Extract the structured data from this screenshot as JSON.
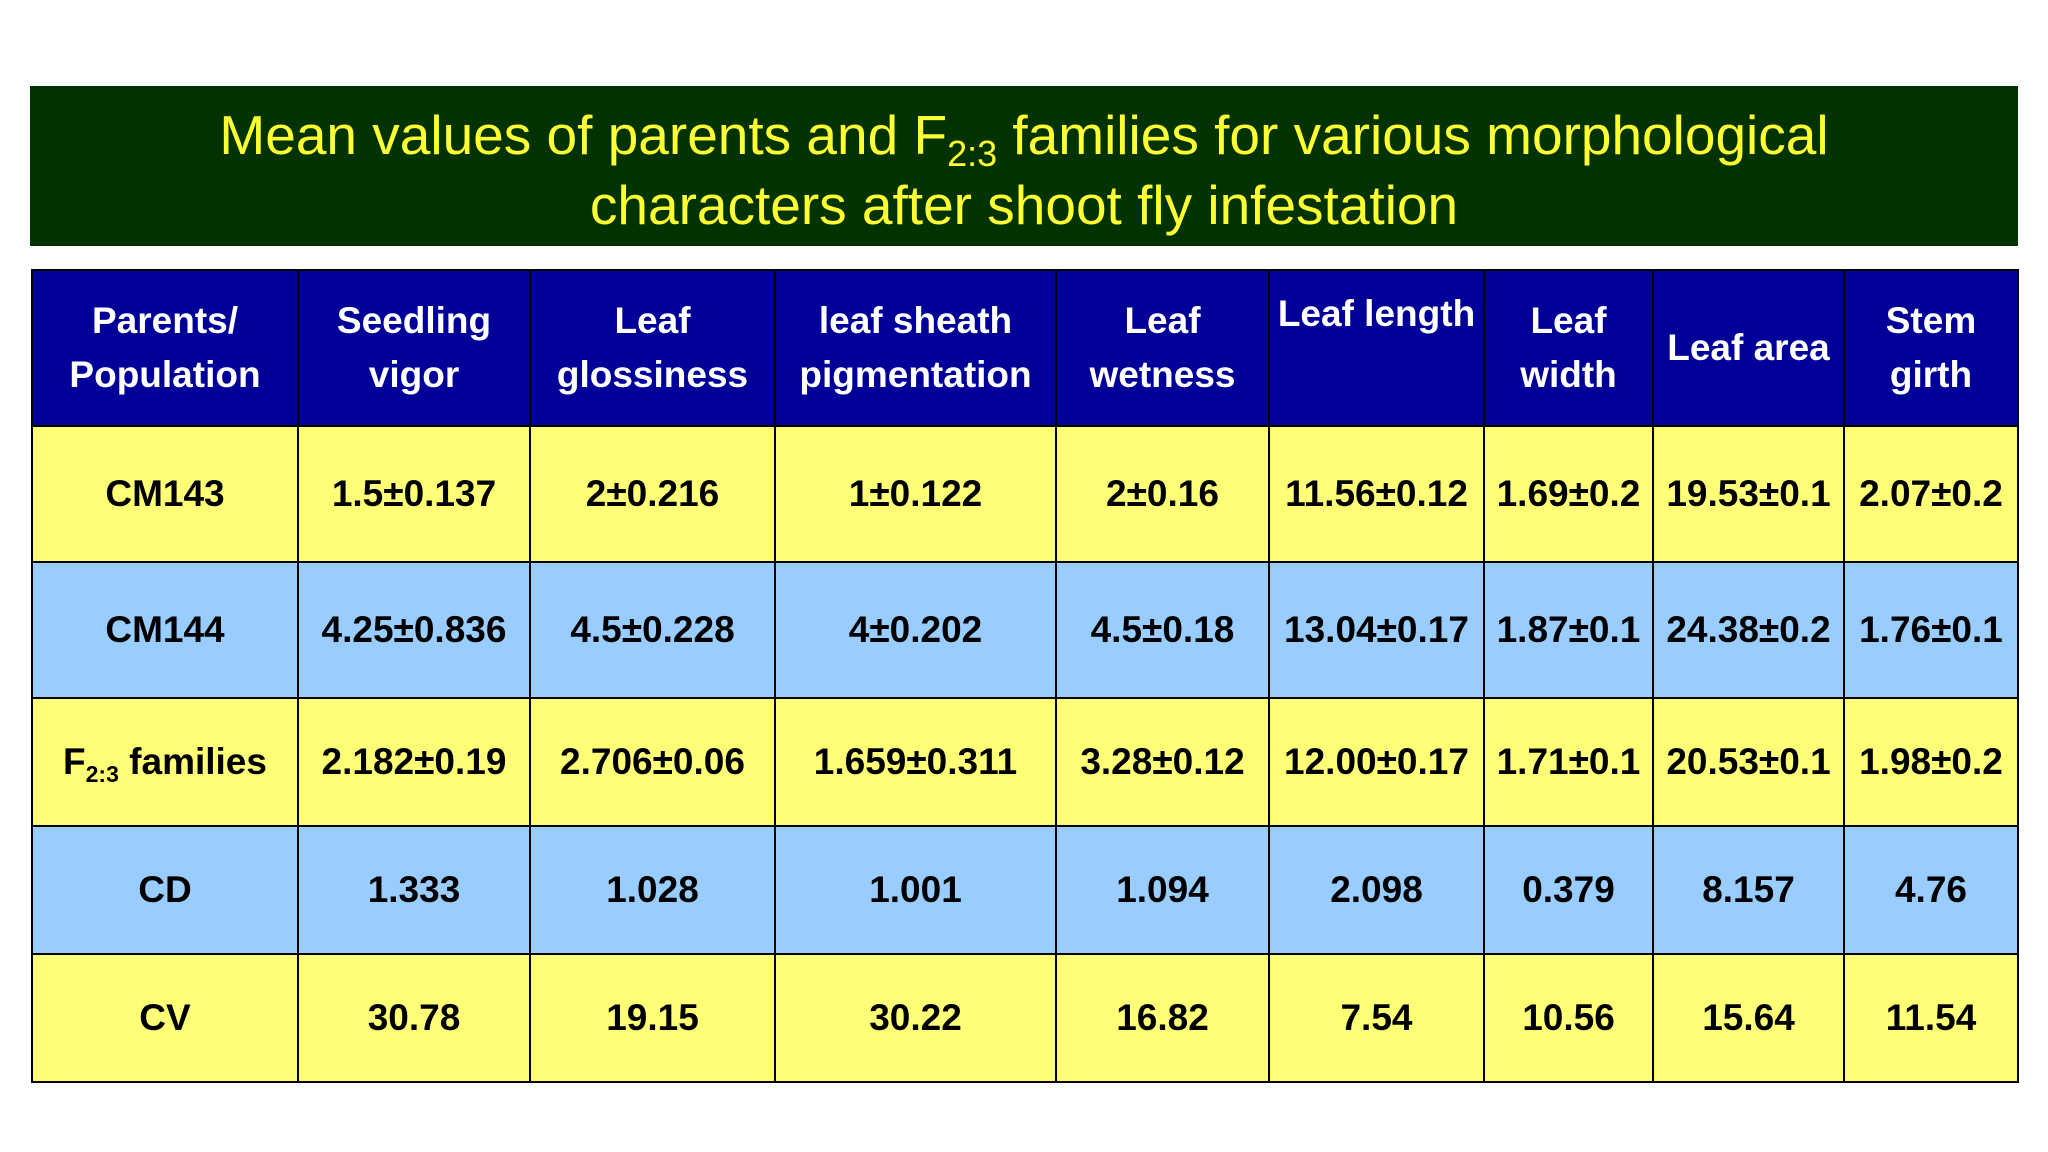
{
  "title": {
    "line1_prefix": "Mean values of parents and F",
    "line1_subscript": "2:3",
    "line1_suffix": " families for various morphological",
    "line2": "characters after shoot fly infestation"
  },
  "table": {
    "headers": [
      {
        "line1": "Parents/",
        "line2": "Population"
      },
      {
        "line1": "Seedling",
        "line2": "vigor"
      },
      {
        "line1": "Leaf",
        "line2": "glossiness"
      },
      {
        "line1": "leaf sheath",
        "line2": "pigmentation"
      },
      {
        "line1": "Leaf",
        "line2": "wetness"
      },
      {
        "line1": "Leaf length",
        "line2": ""
      },
      {
        "line1": "Leaf",
        "line2": "width"
      },
      {
        "line1": "Leaf area",
        "line2": ""
      },
      {
        "line1": "Stem",
        "line2": "girth"
      }
    ],
    "rows": [
      {
        "label": "CM143",
        "cells": [
          "1.5±0.137",
          "2±0.216",
          "1±0.122",
          "2±0.16",
          "11.56±0.12",
          "1.69±0.2",
          "19.53±0.1",
          "2.07±0.2"
        ]
      },
      {
        "label": "CM144",
        "cells": [
          "4.25±0.836",
          "4.5±0.228",
          "4±0.202",
          "4.5±0.18",
          "13.04±0.17",
          "1.87±0.1",
          "24.38±0.2",
          "1.76±0.1"
        ]
      },
      {
        "label_prefix": "F",
        "label_subscript": "2:3",
        "label_suffix": " families",
        "cells": [
          "2.182±0.19",
          "2.706±0.06",
          "1.659±0.311",
          "3.28±0.12",
          "12.00±0.17",
          "1.71±0.1",
          "20.53±0.1",
          "1.98±0.2"
        ]
      },
      {
        "label": "CD",
        "cells": [
          "1.333",
          "1.028",
          "1.001",
          "1.094",
          "2.098",
          "0.379",
          "8.157",
          "4.76"
        ]
      },
      {
        "label": "CV",
        "cells": [
          "30.78",
          "19.15",
          "30.22",
          "16.82",
          "7.54",
          "10.56",
          "15.64",
          "11.54"
        ]
      }
    ]
  },
  "colors": {
    "title_background": "#003300",
    "title_text": "#ffff33",
    "header_background": "#000099",
    "header_text": "#ffffff",
    "row_yellow": "#ffff77",
    "row_blue": "#99ccff"
  }
}
